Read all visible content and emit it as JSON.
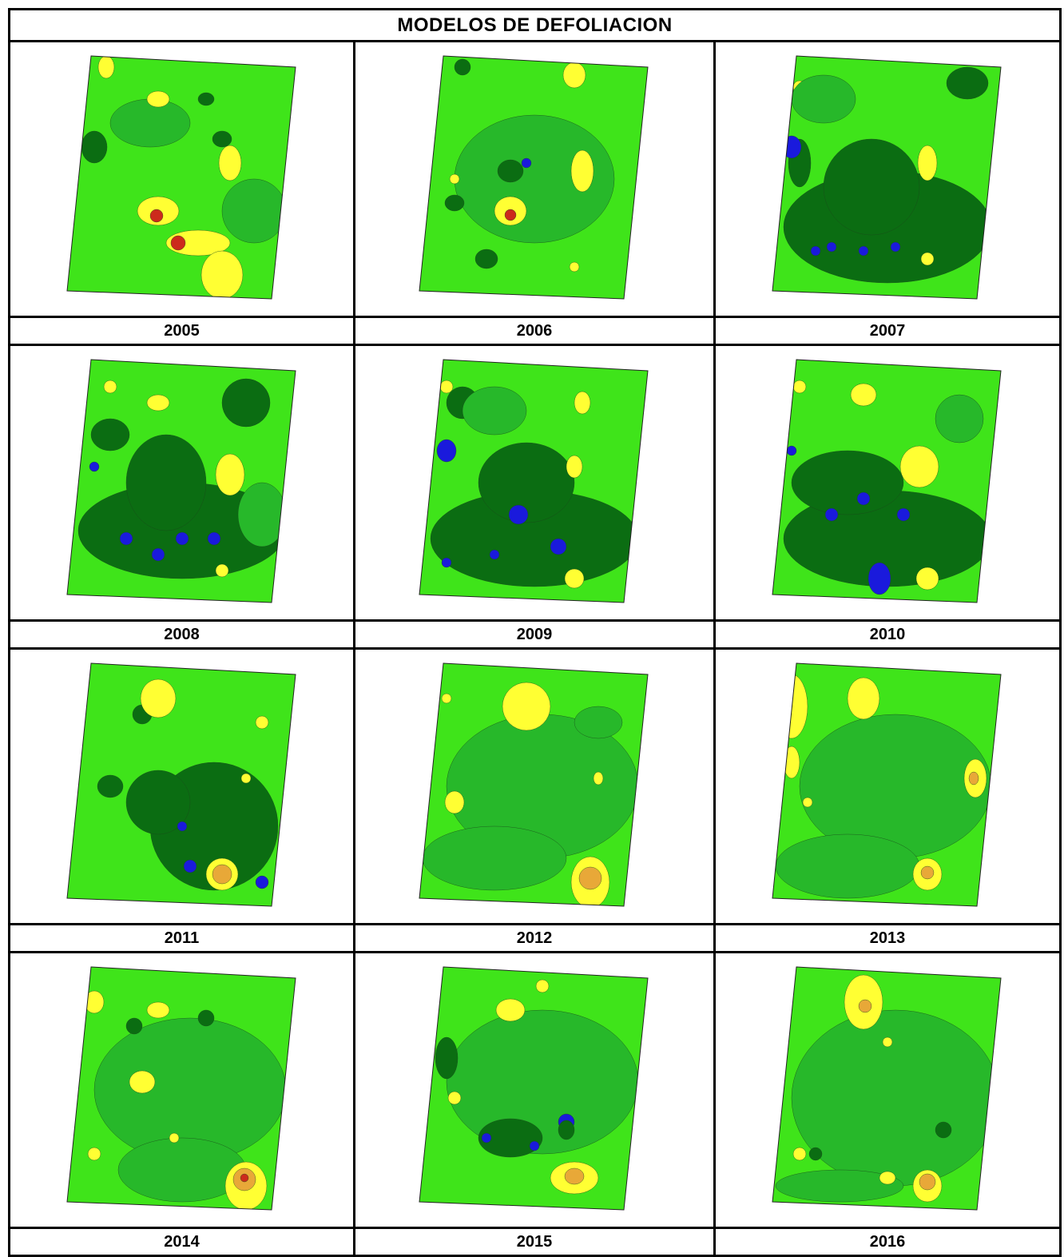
{
  "title": "MODELOS DE DEFOLIACION",
  "colors": {
    "dark_green": "#0b6d12",
    "medium_green": "#27b82a",
    "bright_green": "#3fe41a",
    "yellow": "#ffff33",
    "orange": "#e8a838",
    "red": "#cc2a1c",
    "blue": "#1a1adc"
  },
  "years": [
    "2005",
    "2006",
    "2007",
    "2008",
    "2009",
    "2010",
    "2011",
    "2012",
    "2013",
    "2014",
    "2015",
    "2016"
  ]
}
